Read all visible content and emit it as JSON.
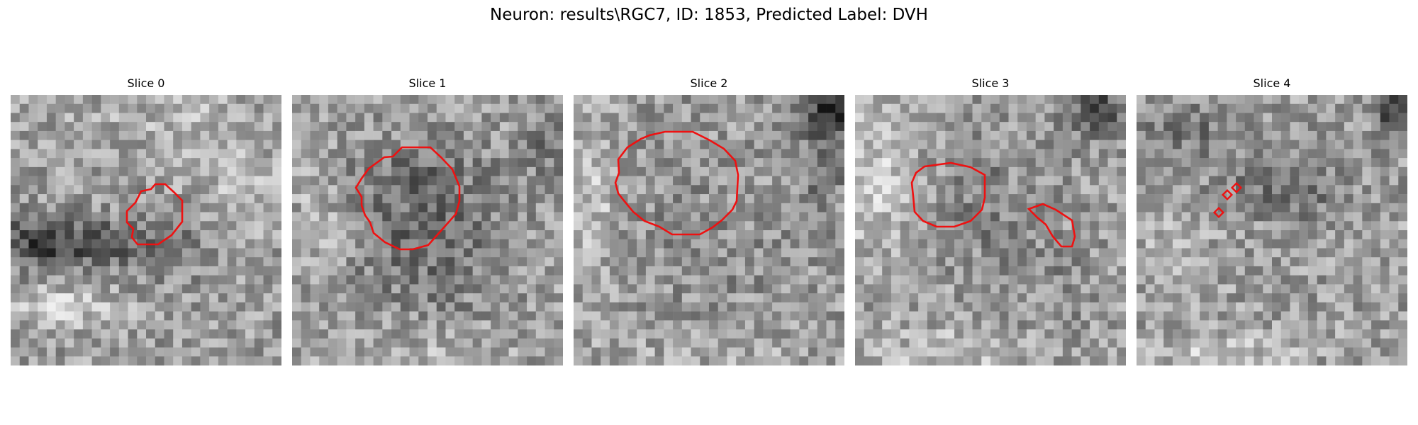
{
  "figure": {
    "title": "Neuron: results\\RGC7, ID: 1853, Predicted Label: DVH"
  },
  "colors": {
    "background": "#ffffff",
    "contour": "#ee1111"
  },
  "grid": {
    "cols": 30,
    "rows": 30
  },
  "slices": [
    {
      "label": "Slice 0"
    },
    {
      "label": "Slice 1"
    },
    {
      "label": "Slice 2"
    },
    {
      "label": "Slice 3"
    },
    {
      "label": "Slice 4"
    }
  ]
}
